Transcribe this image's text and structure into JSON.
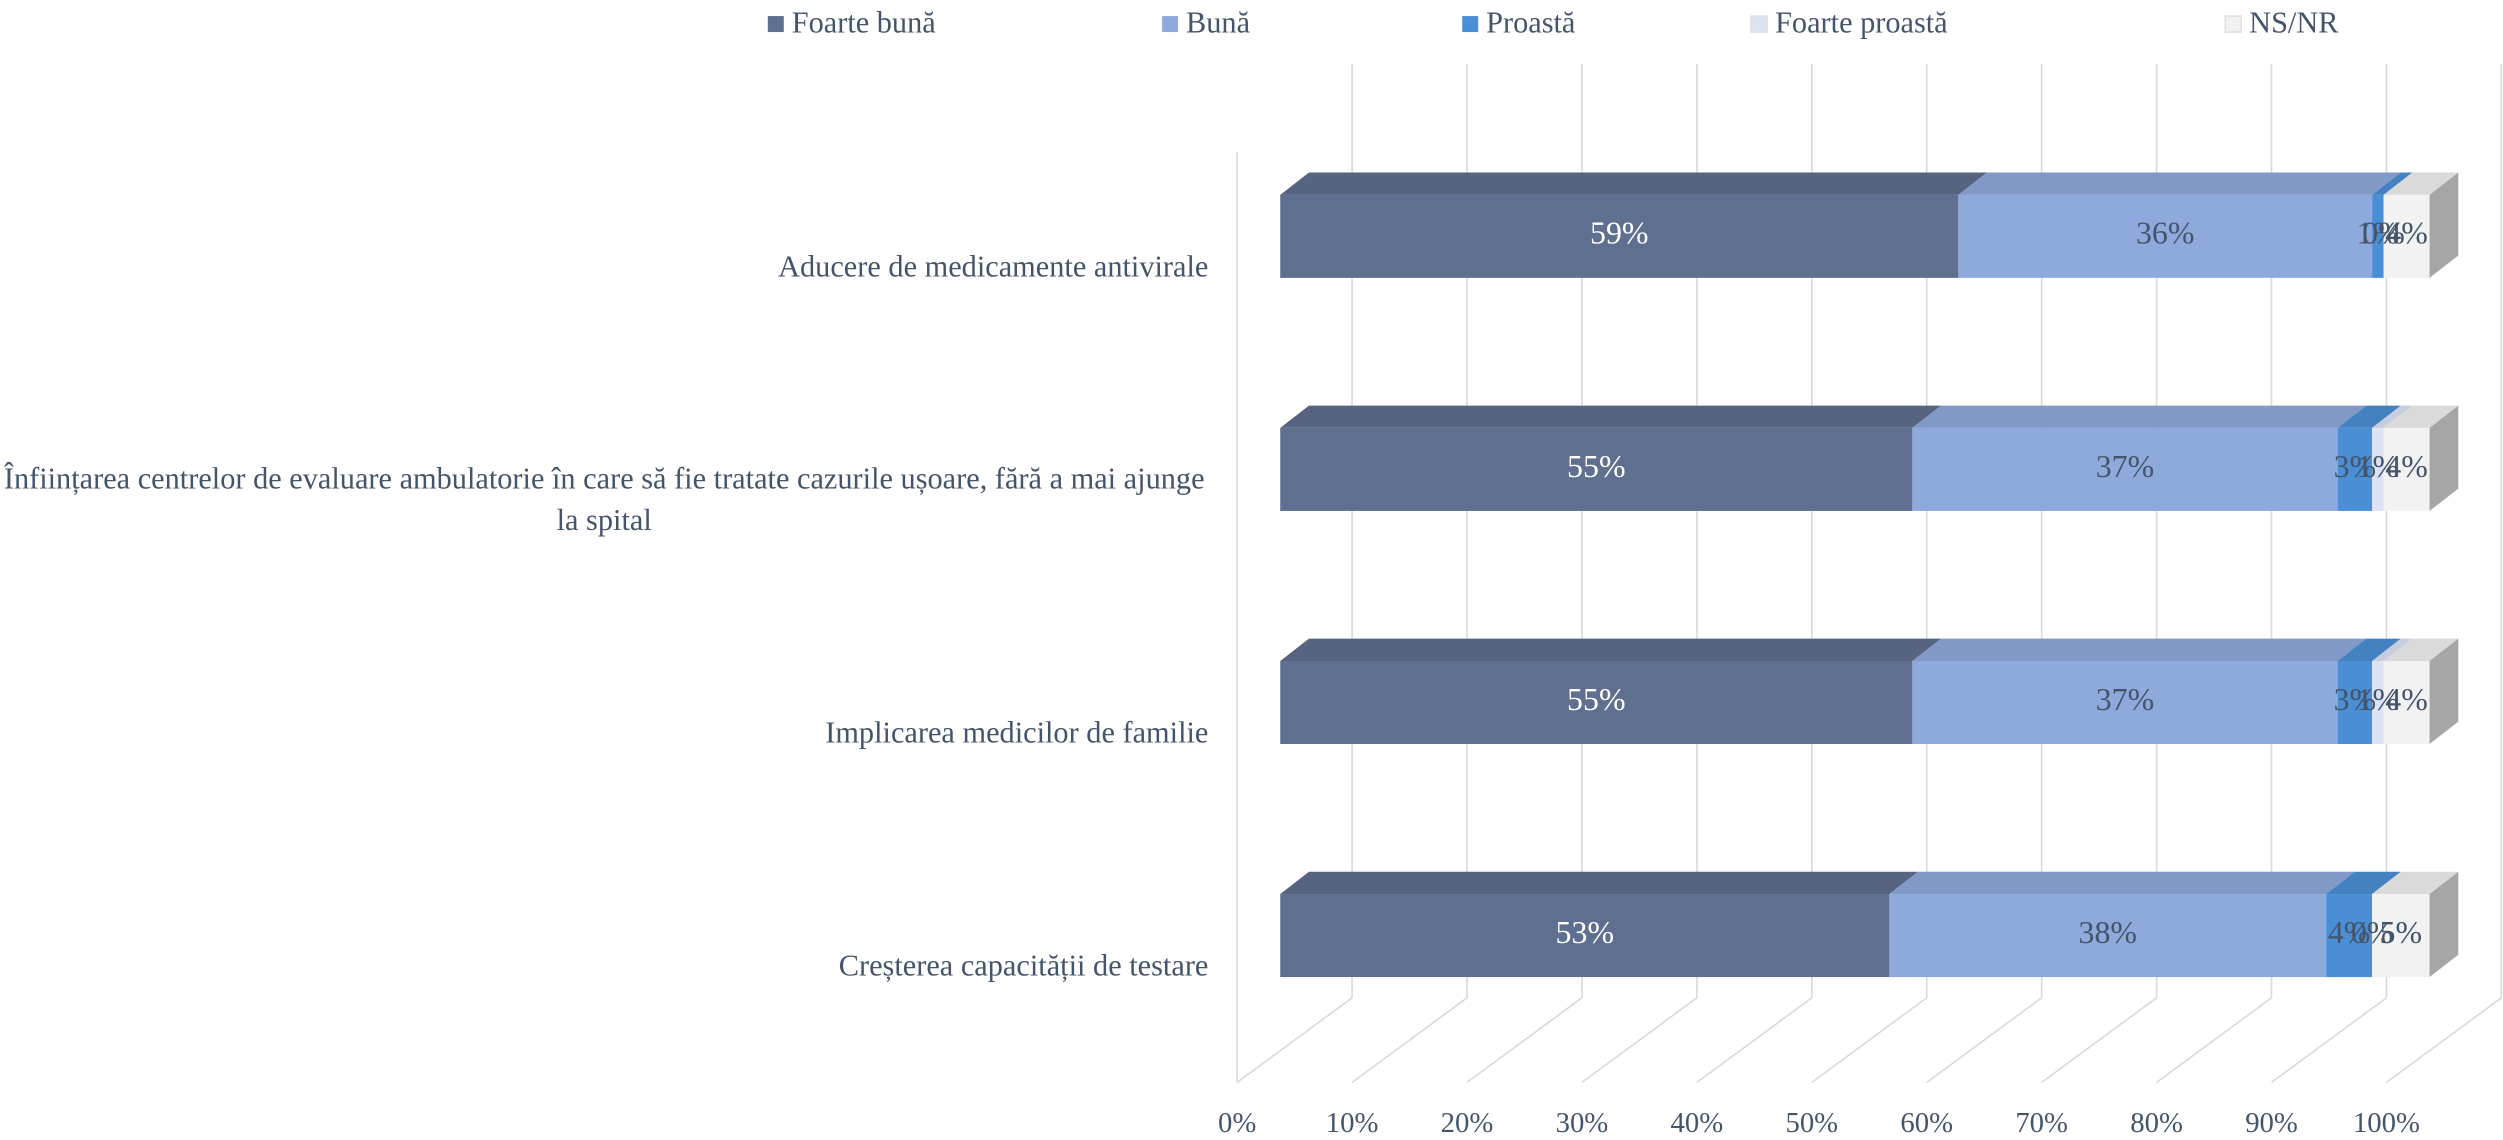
{
  "chart_data": {
    "type": "bar3d_stacked_horizontal",
    "categories": [
      "Aducere de medicamente antivirale",
      "Înființarea centrelor de evaluare ambulatorie în care să fie tratate cazurile ușoare, fără a mai ajunge la spital",
      "Implicarea medicilor de familie",
      "Creșterea capacității de testare"
    ],
    "series": [
      {
        "name": "Foarte bună",
        "color": "#5f6f8f",
        "values": [
          59,
          55,
          55,
          53
        ],
        "value_labels": [
          "59%",
          "55%",
          "55%",
          "53%"
        ]
      },
      {
        "name": "Bună",
        "color": "#8eaadc",
        "values": [
          36,
          37,
          37,
          38
        ],
        "value_labels": [
          "36%",
          "37%",
          "37%",
          "38%"
        ]
      },
      {
        "name": "Proastă",
        "color": "#4a8fd6",
        "values": [
          1,
          3,
          3,
          4
        ],
        "value_labels": [
          "1%",
          "3%",
          "3%",
          "4%"
        ]
      },
      {
        "name": "Foarte proastă",
        "color": "#dce4f4",
        "values": [
          0,
          1,
          1,
          0
        ],
        "value_labels": [
          "0%",
          "1%",
          "1%",
          "0%"
        ]
      },
      {
        "name": "NS/NR",
        "color": "#f2f2f2",
        "values": [
          4,
          4,
          4,
          5
        ],
        "value_labels": [
          "4%",
          "4%",
          "4%",
          "5%"
        ]
      }
    ],
    "xlim": [
      0,
      100
    ],
    "xticks": [
      {
        "value": 0,
        "label": "0%"
      },
      {
        "value": 10,
        "label": "10%"
      },
      {
        "value": 20,
        "label": "20%"
      },
      {
        "value": 30,
        "label": "30%"
      },
      {
        "value": 40,
        "label": "40%"
      },
      {
        "value": 50,
        "label": "50%"
      },
      {
        "value": 60,
        "label": "60%"
      },
      {
        "value": 70,
        "label": "70%"
      },
      {
        "value": 80,
        "label": "80%"
      },
      {
        "value": 90,
        "label": "90%"
      },
      {
        "value": 100,
        "label": "100%"
      }
    ],
    "grid": true,
    "legend": "top"
  }
}
